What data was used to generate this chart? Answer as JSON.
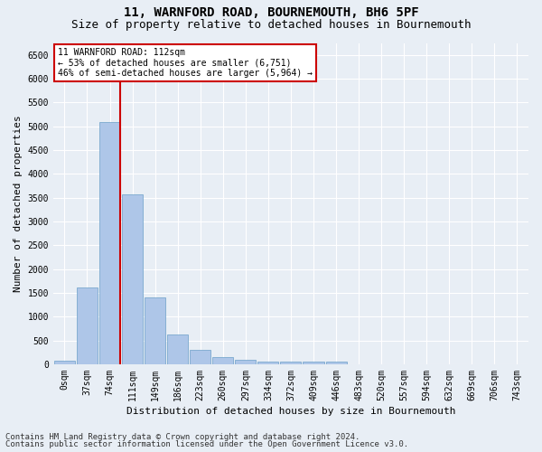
{
  "title1": "11, WARNFORD ROAD, BOURNEMOUTH, BH6 5PF",
  "title2": "Size of property relative to detached houses in Bournemouth",
  "xlabel": "Distribution of detached houses by size in Bournemouth",
  "ylabel": "Number of detached properties",
  "footnote1": "Contains HM Land Registry data © Crown copyright and database right 2024.",
  "footnote2": "Contains public sector information licensed under the Open Government Licence v3.0.",
  "bar_labels": [
    "0sqm",
    "37sqm",
    "74sqm",
    "111sqm",
    "149sqm",
    "186sqm",
    "223sqm",
    "260sqm",
    "297sqm",
    "334sqm",
    "372sqm",
    "409sqm",
    "446sqm",
    "483sqm",
    "520sqm",
    "557sqm",
    "594sqm",
    "632sqm",
    "669sqm",
    "706sqm",
    "743sqm"
  ],
  "bar_values": [
    70,
    1620,
    5080,
    3560,
    1400,
    620,
    305,
    155,
    90,
    55,
    50,
    60,
    50,
    0,
    0,
    0,
    0,
    0,
    0,
    0,
    0
  ],
  "bar_color": "#aec6e8",
  "bar_edge_color": "#6a9fc8",
  "annotation_text": "11 WARNFORD ROAD: 112sqm\n← 53% of detached houses are smaller (6,751)\n46% of semi-detached houses are larger (5,964) →",
  "annotation_box_color": "#ffffff",
  "annotation_box_edge": "#cc0000",
  "line_color": "#cc0000",
  "ylim": [
    0,
    6750
  ],
  "yticks": [
    0,
    500,
    1000,
    1500,
    2000,
    2500,
    3000,
    3500,
    4000,
    4500,
    5000,
    5500,
    6000,
    6500
  ],
  "background_color": "#e8eef5",
  "plot_background": "#e8eef5",
  "grid_color": "#ffffff",
  "title_fontsize": 10,
  "subtitle_fontsize": 9,
  "label_fontsize": 8,
  "tick_fontsize": 7,
  "footnote_fontsize": 6.5
}
